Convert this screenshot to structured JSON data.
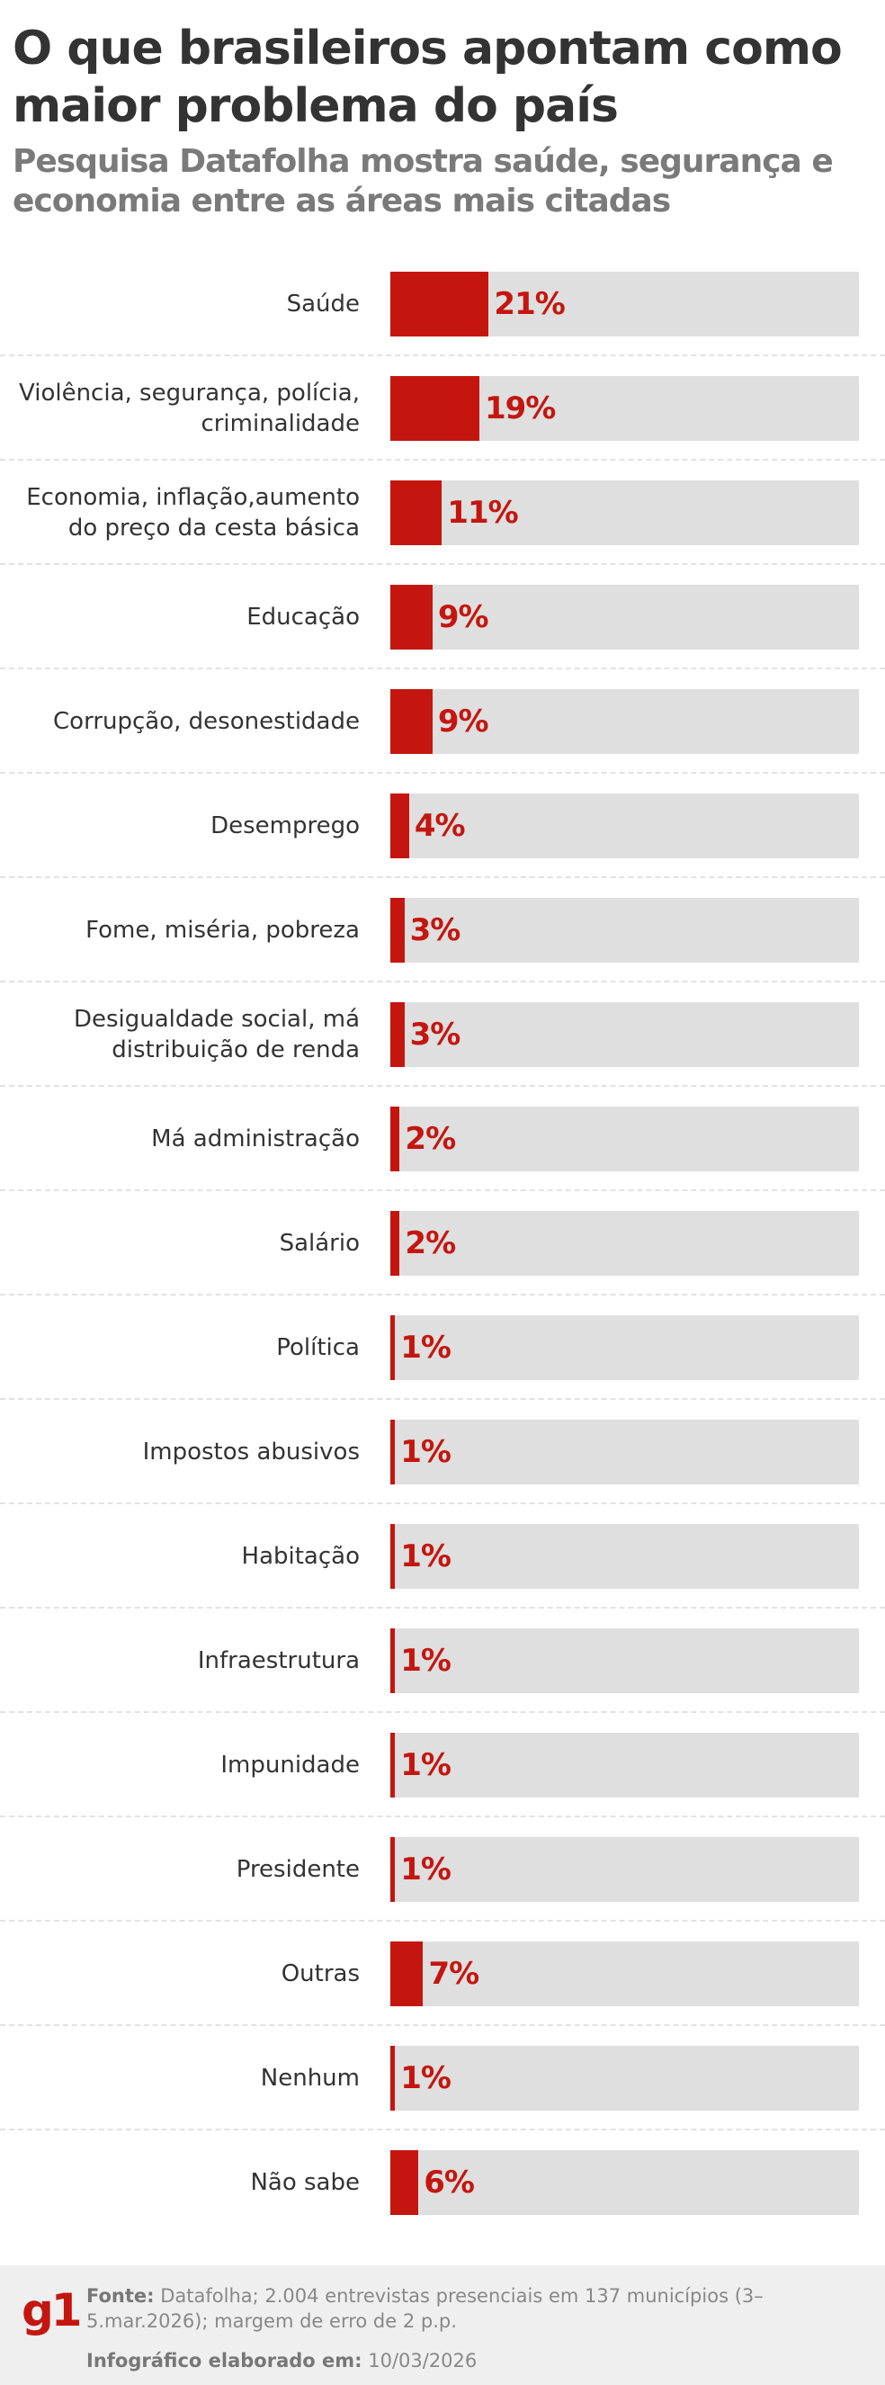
{
  "header": {
    "title": "O que brasileiros apontam como maior problema do país",
    "subtitle": "Pesquisa Datafolha mostra saúde, segurança e economia entre as áreas mais citadas"
  },
  "colors": {
    "bar": "#c4160f",
    "track": "#dfdfdf",
    "footer_bg": "#efefef"
  },
  "chart_data": {
    "type": "bar",
    "orientation": "horizontal",
    "xlim": [
      0,
      100
    ],
    "categories": [
      "Saúde",
      "Violência, segurança, polícia, criminalidade",
      "Economia, inflação,aumento do preço da cesta básica",
      "Educação",
      "Corrupção, desonestidade",
      "Desemprego",
      "Fome, miséria, pobreza",
      "Desigualdade social, má distribuição de renda",
      "Má administração",
      "Salário",
      "Política",
      "Impostos abusivos",
      "Habitação",
      "Infraestrutura",
      "Impunidade",
      "Presidente",
      "Outras",
      "Nenhum",
      "Não sabe"
    ],
    "values": [
      21,
      19,
      11,
      9,
      9,
      4,
      3,
      3,
      2,
      2,
      1,
      1,
      1,
      1,
      1,
      1,
      7,
      1,
      6
    ],
    "labels": [
      "21%",
      "19%",
      "11%",
      "9%",
      "9%",
      "4%",
      "3%",
      "3%",
      "2%",
      "2%",
      "1%",
      "1%",
      "1%",
      "1%",
      "1%",
      "1%",
      "7%",
      "1%",
      "6%"
    ]
  },
  "footer": {
    "logo": "g1",
    "source_label": "Fonte:",
    "source_text": "Datafolha; 2.004 entrevistas presenciais em 137 municípios (3–5.mar.2026); margem de erro de 2 p.p.",
    "made_label": "Infográfico elaborado em:",
    "made_date": "10/03/2026"
  }
}
